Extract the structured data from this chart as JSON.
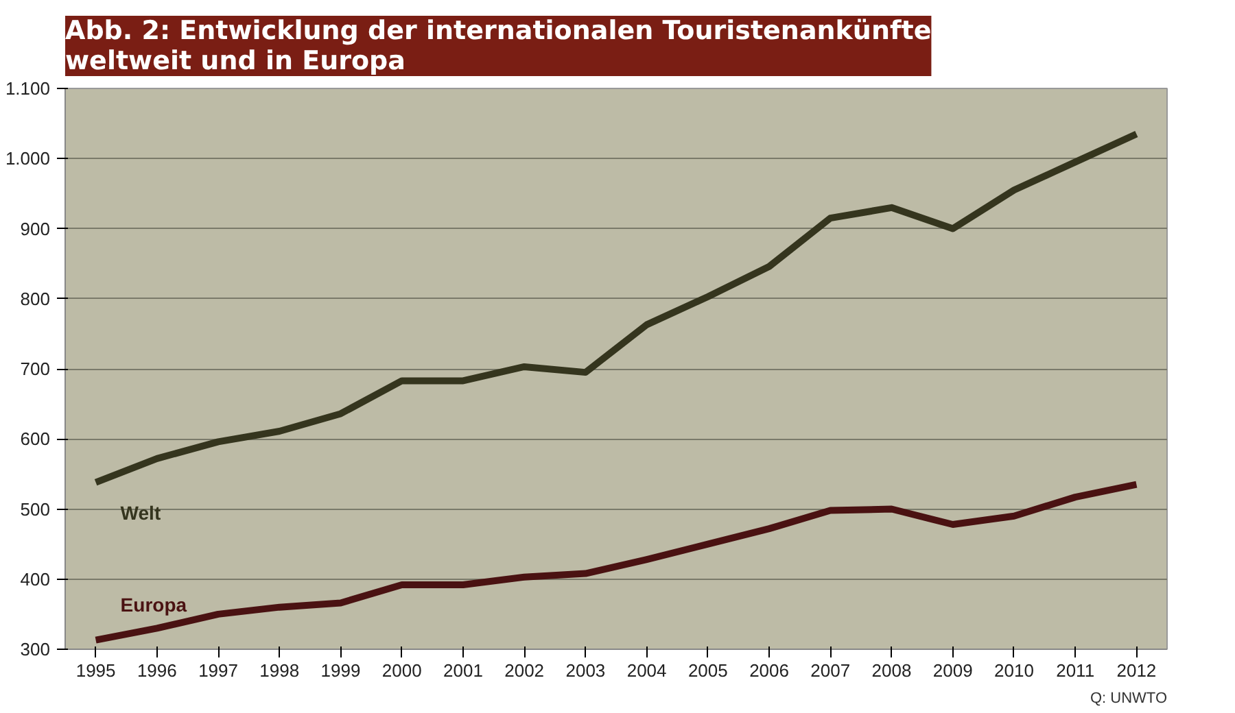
{
  "chart_data": {
    "type": "line",
    "title": "Abb. 2: Entwicklung der internationalen Touristenankünfte\nweltweit und in Europa",
    "categories": [
      "1995",
      "1996",
      "1997",
      "1998",
      "1999",
      "2000",
      "2001",
      "2002",
      "2003",
      "2004",
      "2005",
      "2006",
      "2007",
      "2008",
      "2009",
      "2010",
      "2011",
      "2012"
    ],
    "series": [
      {
        "name": "Welt",
        "color": "#35351e",
        "values": [
          538,
          572,
          596,
          611,
          636,
          683,
          683,
          703,
          695,
          763,
          803,
          846,
          915,
          930,
          900,
          955,
          995,
          1035
        ]
      },
      {
        "name": "Europa",
        "color": "#4a1212",
        "values": [
          313,
          330,
          350,
          360,
          366,
          392,
          392,
          403,
          408,
          428,
          450,
          472,
          498,
          500,
          478,
          490,
          517,
          535
        ]
      }
    ],
    "ylim": [
      300,
      1100
    ],
    "yticks": [
      300,
      400,
      500,
      600,
      700,
      800,
      900,
      {
        "value": 1000,
        "label": "1.000"
      },
      {
        "value": 1100,
        "label": "1.100"
      }
    ],
    "grid": "y",
    "annotations": [
      "Q: UNWTO"
    ]
  }
}
